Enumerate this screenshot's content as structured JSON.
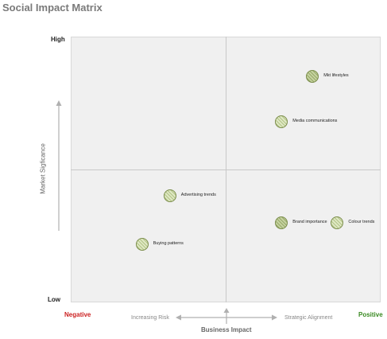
{
  "title": "Social Impact Matrix",
  "y_axis": {
    "title": "Market Sigficance",
    "high": "High",
    "low": "Low"
  },
  "x_axis": {
    "title": "Business Impact",
    "negative": "Negative",
    "positive": "Positive",
    "left_hint": "Increasing Risk",
    "right_hint": "Strategic Alignment"
  },
  "colors": {
    "negative": "#cc2222",
    "positive": "#3a8a22",
    "bubble_border": "#7a8c4a"
  },
  "points": [
    {
      "label": "Mkt lifestyles",
      "x": 0.78,
      "y": 0.85,
      "style": "dark"
    },
    {
      "label": "Media communications",
      "x": 0.68,
      "y": 0.68,
      "style": "light"
    },
    {
      "label": "Advertising trends",
      "x": 0.32,
      "y": 0.4,
      "style": "light"
    },
    {
      "label": "Brand importance",
      "x": 0.68,
      "y": 0.3,
      "style": "dark"
    },
    {
      "label": "Colour trends",
      "x": 0.86,
      "y": 0.3,
      "style": "light"
    },
    {
      "label": "Buying patterns",
      "x": 0.23,
      "y": 0.22,
      "style": "light"
    }
  ]
}
